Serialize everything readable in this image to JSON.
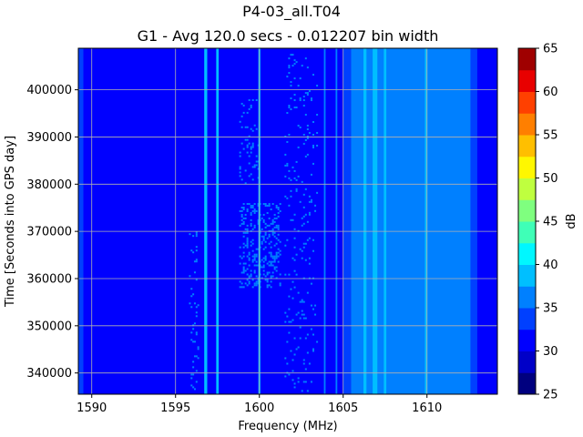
{
  "chart_data": {
    "type": "heatmap",
    "title": "P4-03_all.T04",
    "subtitle": "G1 - Avg 120.0 secs - 0.012207 bin width",
    "xlabel": "Frequency (MHz)",
    "ylabel": "Time [Seconds into GPS day]",
    "colorbar_label": "dB",
    "xlim": [
      1589.2,
      1614.2
    ],
    "ylim": [
      335500,
      408800
    ],
    "x_ticks": [
      1590,
      1595,
      1600,
      1605,
      1610
    ],
    "y_ticks": [
      340000,
      350000,
      360000,
      370000,
      380000,
      390000,
      400000
    ],
    "colorbar_ticks": [
      25,
      30,
      35,
      40,
      45,
      50,
      55,
      60,
      65
    ],
    "colorbar_levels": [
      25,
      27.5,
      30,
      32.5,
      35,
      37.5,
      40,
      42.5,
      45,
      47.5,
      50,
      52.5,
      55,
      57.5,
      60,
      62.5,
      65
    ],
    "colormap": [
      "#00007f",
      "#0000c8",
      "#0000ff",
      "#0040ff",
      "#0080ff",
      "#00bfff",
      "#00f7ff",
      "#3fffb7",
      "#7fff7f",
      "#bfff3f",
      "#fff700",
      "#ffbf00",
      "#ff7f00",
      "#ff4000",
      "#e80000",
      "#9f0000"
    ],
    "grid": true,
    "background_level_db": 32,
    "edge_band_db": 34.5,
    "edge_band_mhz": [
      1589.2,
      1589.5
    ],
    "regions": [
      {
        "name": "high band",
        "x": [
          1605.0,
          1612.6
        ],
        "db": 35.5
      },
      {
        "name": "band edge low",
        "x": [
          1605.0,
          1605.6
        ],
        "db": 34.6
      },
      {
        "name": "band edge high",
        "x": [
          1612.6,
          1613.0
        ],
        "db": 34.2
      }
    ],
    "lines": [
      {
        "x": 1596.8,
        "width": 0.18,
        "db": 39
      },
      {
        "x": 1597.5,
        "width": 0.15,
        "db": 39
      },
      {
        "x": 1600.0,
        "width": 0.12,
        "db": 38
      },
      {
        "x": 1605.55,
        "width": 0.15,
        "db": 37
      },
      {
        "x": 1606.3,
        "width": 0.18,
        "db": 38
      },
      {
        "x": 1606.9,
        "width": 0.28,
        "db": 39.5
      },
      {
        "x": 1607.5,
        "width": 0.15,
        "db": 38
      },
      {
        "x": 1609.95,
        "width": 0.15,
        "db": 38
      },
      {
        "x": 1603.9,
        "width": 0.1,
        "db": 35.5
      },
      {
        "x": 1604.6,
        "width": 0.1,
        "db": 35.5
      }
    ],
    "speckle_zones": [
      {
        "x": [
          1598.8,
          1601.3
        ],
        "y": [
          358000,
          376000
        ],
        "db": 35.5,
        "density": 0.25
      },
      {
        "x": [
          1598.8,
          1600.0
        ],
        "y": [
          380000,
          398000
        ],
        "db": 35.5,
        "density": 0.12
      },
      {
        "x": [
          1595.8,
          1596.4
        ],
        "y": [
          336000,
          370000
        ],
        "db": 35.5,
        "density": 0.1
      },
      {
        "x": [
          1601.5,
          1603.5
        ],
        "y": [
          336000,
          408000
        ],
        "db": 35.5,
        "density": 0.06
      }
    ]
  }
}
